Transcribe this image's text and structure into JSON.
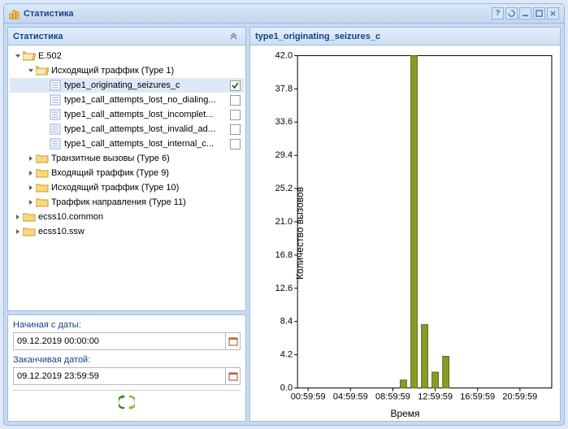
{
  "window": {
    "title": "Статистика"
  },
  "tree": {
    "header": "Статистика",
    "nodes": [
      {
        "indent": 0,
        "arrow": "down",
        "icon": "folder-open",
        "label": "E.502",
        "check": null
      },
      {
        "indent": 1,
        "arrow": "down",
        "icon": "folder-open",
        "label": "Исходящий траффик (Type 1)",
        "check": null
      },
      {
        "indent": 2,
        "arrow": null,
        "icon": "file",
        "label": "type1_originating_seizures_c",
        "check": true,
        "selected": true
      },
      {
        "indent": 2,
        "arrow": null,
        "icon": "file",
        "label": "type1_call_attempts_lost_no_dialing...",
        "check": false
      },
      {
        "indent": 2,
        "arrow": null,
        "icon": "file",
        "label": "type1_call_attempts_lost_incomplet...",
        "check": false
      },
      {
        "indent": 2,
        "arrow": null,
        "icon": "file",
        "label": "type1_call_attempts_lost_invalid_ad...",
        "check": false
      },
      {
        "indent": 2,
        "arrow": null,
        "icon": "file",
        "label": "type1_call_attempts_lost_internal_c...",
        "check": false
      },
      {
        "indent": 1,
        "arrow": "right",
        "icon": "folder",
        "label": "Транзитные вызовы (Type 6)",
        "check": null
      },
      {
        "indent": 1,
        "arrow": "right",
        "icon": "folder",
        "label": "Входящий траффик (Type 9)",
        "check": null
      },
      {
        "indent": 1,
        "arrow": "right",
        "icon": "folder",
        "label": "Исходящий траффик (Type 10)",
        "check": null
      },
      {
        "indent": 1,
        "arrow": "right",
        "icon": "folder",
        "label": "Траффик направления (Type 11)",
        "check": null
      },
      {
        "indent": 0,
        "arrow": "right",
        "icon": "folder",
        "label": "ecss10.common",
        "check": null
      },
      {
        "indent": 0,
        "arrow": "right",
        "icon": "folder",
        "label": "ecss10.ssw",
        "check": null
      }
    ]
  },
  "dates": {
    "start_label": "Начиная с даты:",
    "start_value": "09.12.2019 00:00:00",
    "end_label": "Заканчивая датой:",
    "end_value": "09.12.2019 23:59:59"
  },
  "chart": {
    "title": "type1_originating_seizures_c",
    "ylabel": "Количество вызовов",
    "xlabel": "Время",
    "ylim": [
      0,
      42
    ],
    "yticks": [
      0.0,
      4.2,
      8.4,
      12.6,
      16.8,
      21.0,
      25.2,
      29.4,
      33.6,
      37.8,
      42.0
    ],
    "xticks": [
      "00:59:59",
      "04:59:59",
      "08:59:59",
      "12:59:59",
      "16:59:59",
      "20:59:59"
    ],
    "xrange": 24,
    "bar_color": "#8a9a27",
    "bars": [
      {
        "x": 10,
        "y": 1
      },
      {
        "x": 11,
        "y": 42
      },
      {
        "x": 12,
        "y": 8
      },
      {
        "x": 13,
        "y": 2
      },
      {
        "x": 14,
        "y": 4
      }
    ],
    "bar_width": 0.6
  }
}
